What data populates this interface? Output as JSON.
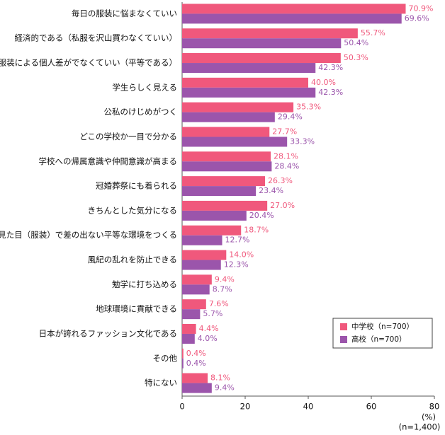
{
  "chart_data": {
    "type": "bar",
    "orientation": "horizontal",
    "categories": [
      "毎日の服装に悩まなくていい",
      "経済的である（私服を沢山買わなくていい）",
      "服装による個人差がでなくていい（平等である）",
      "学生らしく見える",
      "公私のけじめがつく",
      "どこの学校か一目で分かる",
      "学校への帰属意識や仲間意識が高まる",
      "冠婚葬祭にも着られる",
      "きちんとした気分になる",
      "見た目（服装）で差の出ない平等な環境をつくる",
      "風紀の乱れを防止できる",
      "勉学に打ち込める",
      "地球環境に貢献できる",
      "日本が誇れるファッション文化である",
      "その他",
      "特にない"
    ],
    "series": [
      {
        "name": "中学校（n=700）",
        "color": "#f0587c",
        "values": [
          70.9,
          55.7,
          50.3,
          40.0,
          35.3,
          27.7,
          28.1,
          26.3,
          27.0,
          18.7,
          14.0,
          9.4,
          7.6,
          4.4,
          0.4,
          8.1
        ],
        "value_labels": [
          "70.9%",
          "55.7%",
          "50.3%",
          "40.0%",
          "35.3%",
          "27.7%",
          "28.1%",
          "26.3%",
          "27.0%",
          "18.7%",
          "14.0%",
          "9.4%",
          "7.6%",
          "4.4%",
          "0.4%",
          "8.1%"
        ]
      },
      {
        "name": "高校（n=700）",
        "color": "#9b55ab",
        "values": [
          69.6,
          50.4,
          42.3,
          42.3,
          29.4,
          33.3,
          28.4,
          23.4,
          20.4,
          12.7,
          12.3,
          8.7,
          5.7,
          4.0,
          0.4,
          9.4
        ],
        "value_labels": [
          "69.6%",
          "50.4%",
          "42.3%",
          "42.3%",
          "29.4%",
          "33.3%",
          "28.4%",
          "23.4%",
          "20.4%",
          "12.7%",
          "12.3%",
          "8.7%",
          "5.7%",
          "4.0%",
          "0.4%",
          "9.4%"
        ]
      }
    ],
    "xlim": [
      0,
      80
    ],
    "xticks": [
      0,
      20,
      40,
      60,
      80
    ],
    "x_label": "(%)",
    "note": "(n=1,400)",
    "grid": false,
    "legend": "lower right"
  }
}
